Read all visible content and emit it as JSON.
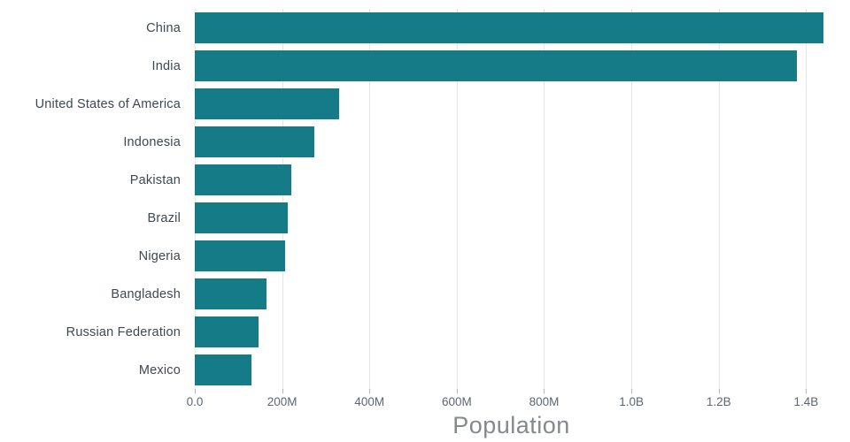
{
  "chart_data": {
    "type": "bar",
    "orientation": "horizontal",
    "title": "",
    "xlabel": "Population",
    "ylabel": "",
    "categories": [
      "China",
      "India",
      "United States of America",
      "Indonesia",
      "Pakistan",
      "Brazil",
      "Nigeria",
      "Bangladesh",
      "Russian Federation",
      "Mexico"
    ],
    "values": [
      1439323776,
      1380004385,
      331002651,
      273523615,
      220892340,
      212559417,
      206139589,
      164689383,
      145934462,
      128932753
    ],
    "xlim": [
      0,
      1450000000
    ],
    "xticks": [
      {
        "value": 0,
        "label": "0.0"
      },
      {
        "value": 200000000,
        "label": "200M"
      },
      {
        "value": 400000000,
        "label": "400M"
      },
      {
        "value": 600000000,
        "label": "600M"
      },
      {
        "value": 800000000,
        "label": "800M"
      },
      {
        "value": 1000000000,
        "label": "1.0B"
      },
      {
        "value": 1200000000,
        "label": "1.2B"
      },
      {
        "value": 1400000000,
        "label": "1.4B"
      }
    ],
    "grid": true,
    "legend": "none",
    "colors": {
      "bar": "#157c87",
      "category_label": "#3d4852",
      "tick_label": "#5c6670",
      "axis_title": "#85898d",
      "gridline": "#e4e6e8"
    }
  }
}
